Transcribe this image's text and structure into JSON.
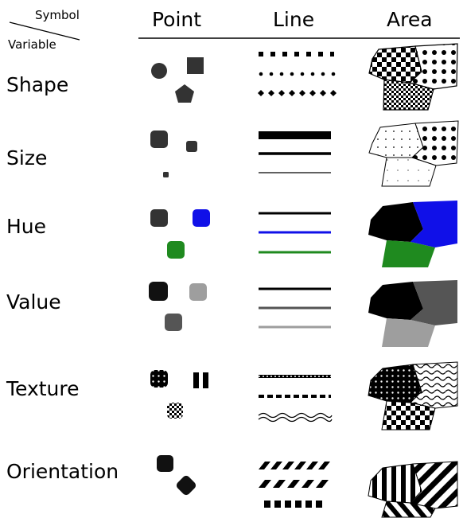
{
  "header": {
    "symbol": "Symbol",
    "variable": "Variable",
    "columns": [
      "Point",
      "Line",
      "Area"
    ]
  },
  "rows": [
    {
      "label": "Shape"
    },
    {
      "label": "Size"
    },
    {
      "label": "Hue"
    },
    {
      "label": "Value"
    },
    {
      "label": "Texture"
    },
    {
      "label": "Orientation"
    }
  ],
  "colors": {
    "dark": "#333333",
    "black": "#000000",
    "blue": "#1010e8",
    "green": "#1f8a1f",
    "value_mid": "#555555",
    "value_light": "#9e9e9e"
  }
}
